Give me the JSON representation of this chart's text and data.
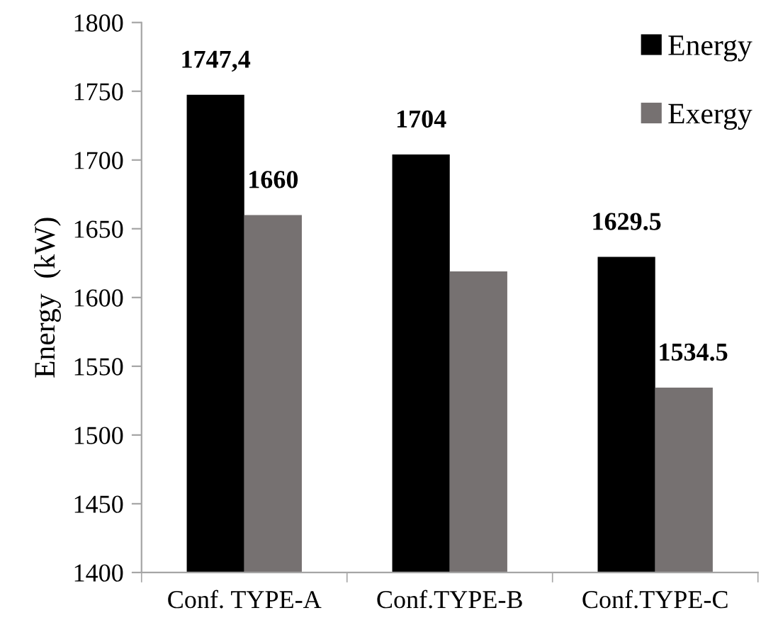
{
  "chart_data": {
    "type": "bar",
    "ylabel": "Energy  (kW)",
    "categories": [
      "Conf. TYPE-A",
      "Conf.TYPE-B",
      "Conf.TYPE-C"
    ],
    "series": [
      {
        "name": "Energy",
        "color": "#000000",
        "values": [
          1747.4,
          1704,
          1629.5
        ],
        "value_labels": [
          "1747,4",
          "1704",
          "1629.5"
        ]
      },
      {
        "name": "Exergy",
        "color": "#767171",
        "values": [
          1660,
          1619,
          1534.5
        ],
        "value_labels": [
          "1660",
          null,
          "1534.5"
        ]
      }
    ],
    "ylim": [
      1400,
      1800
    ],
    "yticks": [
      1400,
      1450,
      1500,
      1550,
      1600,
      1650,
      1700,
      1750,
      1800
    ],
    "legend": "upper right",
    "grid": false
  }
}
